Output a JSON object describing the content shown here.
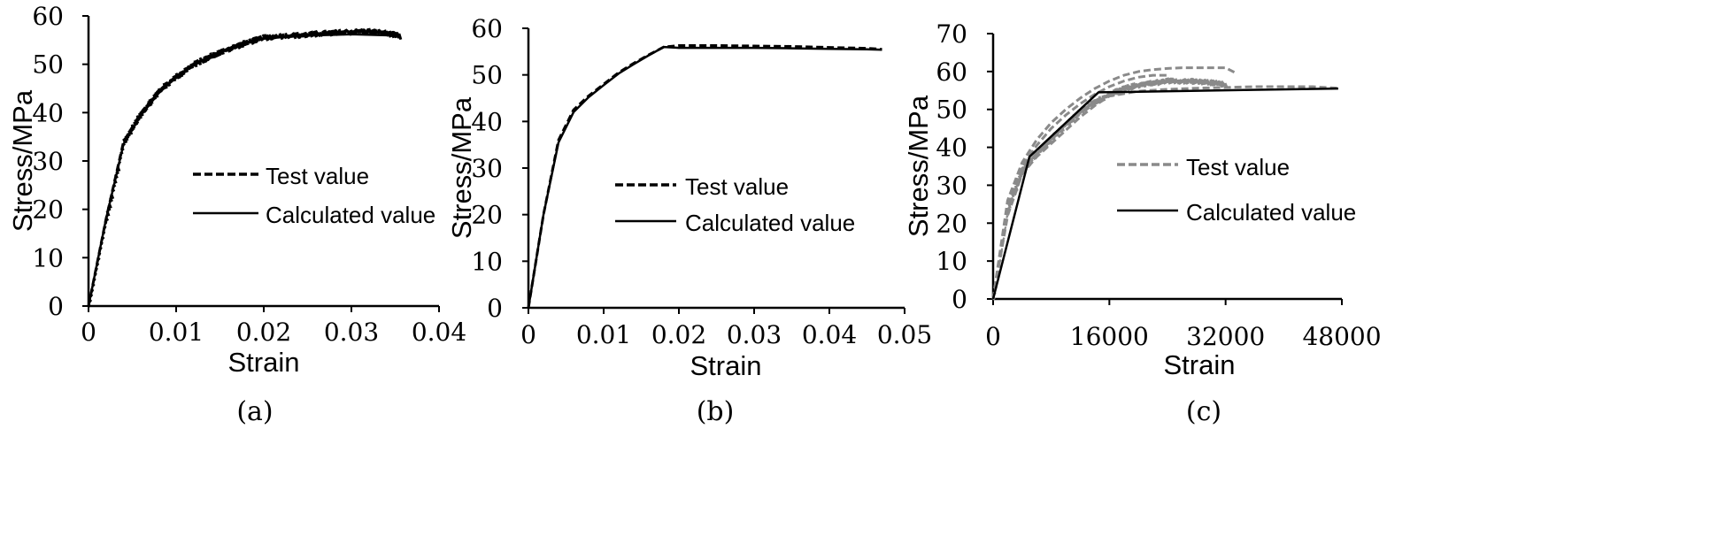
{
  "chart_data": [
    {
      "type": "line",
      "caption": "(a)",
      "xlabel": "Strain",
      "ylabel": "Stress/MPa",
      "xlim": [
        0,
        0.04
      ],
      "ylim": [
        0,
        60
      ],
      "xticks": [
        0,
        0.01,
        0.02,
        0.03,
        0.04
      ],
      "xtick_labels": [
        "0",
        "0.01",
        "0.02",
        "0.03",
        "0.04"
      ],
      "yticks": [
        0,
        10,
        20,
        30,
        40,
        50,
        60
      ],
      "ytick_labels": [
        "0",
        "10",
        "20",
        "30",
        "40",
        "50",
        "60"
      ],
      "legend": [
        {
          "label": "Test value",
          "style": "dashed",
          "color": "#000000"
        },
        {
          "label": "Calculated value",
          "style": "solid",
          "color": "#000000"
        }
      ],
      "series": [
        {
          "name": "Test value",
          "style": "dashed",
          "color": "#000000",
          "noisy": true,
          "x": [
            0,
            0.002,
            0.004,
            0.006,
            0.008,
            0.01,
            0.012,
            0.014,
            0.016,
            0.018,
            0.02,
            0.022,
            0.024,
            0.026,
            0.028,
            0.03,
            0.032,
            0.034,
            0.0355
          ],
          "y": [
            0,
            18,
            34,
            40,
            44.5,
            47.5,
            50,
            51.8,
            53.2,
            54.5,
            55.5,
            55.8,
            56,
            56.3,
            56.5,
            56.7,
            56.8,
            56.4,
            55.8
          ]
        },
        {
          "name": "Calculated value",
          "style": "solid",
          "color": "#000000",
          "noisy": false,
          "x": [
            0,
            0.002,
            0.004,
            0.006,
            0.008,
            0.01,
            0.012,
            0.014,
            0.016,
            0.018,
            0.02,
            0.022,
            0.026,
            0.03,
            0.034,
            0.0355
          ],
          "y": [
            0,
            18,
            33.5,
            39.5,
            44,
            47.3,
            49.8,
            51.7,
            53.2,
            54.4,
            55.3,
            55.6,
            56,
            56.2,
            56,
            55.8
          ]
        }
      ]
    },
    {
      "type": "line",
      "caption": "(b)",
      "xlabel": "Strain",
      "ylabel": "Stress/MPa",
      "xlim": [
        0,
        0.05
      ],
      "ylim": [
        0,
        60
      ],
      "xticks": [
        0,
        0.01,
        0.02,
        0.03,
        0.04,
        0.05
      ],
      "xtick_labels": [
        "0",
        "0.01",
        "0.02",
        "0.03",
        "0.04",
        "0.05"
      ],
      "yticks": [
        0,
        10,
        20,
        30,
        40,
        50,
        60
      ],
      "ytick_labels": [
        "0",
        "10",
        "20",
        "30",
        "40",
        "50",
        "60"
      ],
      "legend": [
        {
          "label": "Test value",
          "style": "dashed",
          "color": "#000000"
        },
        {
          "label": "Calculated value",
          "style": "solid",
          "color": "#000000"
        }
      ],
      "series": [
        {
          "name": "Test value",
          "style": "dashed",
          "color": "#000000",
          "noisy": false,
          "x": [
            0,
            0.002,
            0.004,
            0.006,
            0.008,
            0.01,
            0.012,
            0.014,
            0.016,
            0.018,
            0.02,
            0.025,
            0.03,
            0.035,
            0.04,
            0.045,
            0.047
          ],
          "y": [
            0,
            20,
            36,
            42.5,
            45.5,
            48,
            50.5,
            52.5,
            54.3,
            56,
            56.3,
            56.3,
            56.2,
            56.1,
            55.9,
            55.7,
            55.5
          ]
        },
        {
          "name": "Calculated value",
          "style": "solid",
          "color": "#000000",
          "noisy": false,
          "x": [
            0,
            0.002,
            0.004,
            0.006,
            0.008,
            0.01,
            0.012,
            0.014,
            0.016,
            0.018,
            0.02,
            0.025,
            0.03,
            0.035,
            0.04,
            0.045,
            0.047
          ],
          "y": [
            0,
            20,
            35.5,
            42,
            45.2,
            47.8,
            50.3,
            52.3,
            54.2,
            56,
            55.8,
            55.8,
            55.8,
            55.7,
            55.6,
            55.5,
            55.4
          ]
        }
      ]
    },
    {
      "type": "line",
      "caption": "(c)",
      "xlabel": "Strain",
      "ylabel": "Stress/MPa",
      "xlim": [
        0,
        48000
      ],
      "ylim": [
        0,
        70
      ],
      "xticks": [
        0,
        16000,
        32000,
        48000
      ],
      "xtick_labels": [
        "0",
        "16000",
        "32000",
        "48000"
      ],
      "yticks": [
        0,
        10,
        20,
        30,
        40,
        50,
        60,
        70
      ],
      "ytick_labels": [
        "0",
        "10",
        "20",
        "30",
        "40",
        "50",
        "60",
        "70"
      ],
      "legend": [
        {
          "label": "Test value",
          "style": "dashed",
          "color": "#8a8a8a"
        },
        {
          "label": "Calculated value",
          "style": "solid",
          "color": "#000000"
        }
      ],
      "series": [
        {
          "name": "Test value",
          "style": "dashed",
          "color": "#8a8a8a",
          "noisy": false,
          "x": [
            0,
            2000,
            4000,
            6000,
            8000,
            10000,
            12000,
            14000,
            16000,
            18000,
            20000,
            22000,
            24000,
            26000,
            28000,
            30000,
            32000,
            33500
          ],
          "y": [
            0,
            26,
            36,
            42,
            46.5,
            50,
            53,
            55.5,
            57.5,
            59,
            60,
            60.5,
            60.8,
            61,
            61,
            61,
            61,
            59.5
          ]
        },
        {
          "name": "Test value",
          "style": "dashed",
          "color": "#8a8a8a",
          "noisy": false,
          "x": [
            0,
            2000,
            4000,
            6000,
            8000,
            10000,
            12000,
            14000,
            16000,
            18000,
            20000,
            22000,
            24000
          ],
          "y": [
            0,
            25,
            35,
            40.5,
            45,
            48.5,
            51.5,
            54,
            56,
            57.5,
            58.5,
            59,
            59
          ]
        },
        {
          "name": "Test value",
          "style": "dashed",
          "color": "#8a8a8a",
          "noisy": true,
          "x": [
            0,
            2000,
            4000,
            6000,
            8000,
            10000,
            12000,
            14000,
            16000,
            18000,
            20000,
            22000,
            24000,
            26000,
            28000,
            30000,
            32000
          ],
          "y": [
            0,
            24,
            34,
            38.5,
            42.5,
            46,
            49.5,
            52,
            54,
            55.5,
            56.5,
            57,
            57.5,
            57.5,
            57.3,
            57,
            56.5
          ]
        },
        {
          "name": "Test value",
          "style": "dashed",
          "color": "#8a8a8a",
          "noisy": false,
          "x": [
            0,
            2000,
            4000,
            6000,
            8000,
            10000,
            12000,
            14000,
            16000,
            20000,
            24000,
            28000,
            32000,
            36000,
            40000,
            44000,
            47500
          ],
          "y": [
            0,
            22,
            33,
            37.5,
            41,
            44.5,
            48,
            51,
            53.5,
            54.8,
            55.3,
            55.6,
            55.8,
            56,
            56,
            56,
            55.6
          ]
        },
        {
          "name": "Calculated value",
          "style": "solid",
          "color": "#000000",
          "noisy": false,
          "x": [
            0,
            5000,
            14500,
            47500
          ],
          "y": [
            0,
            37.5,
            54.5,
            55.5
          ]
        }
      ]
    }
  ]
}
